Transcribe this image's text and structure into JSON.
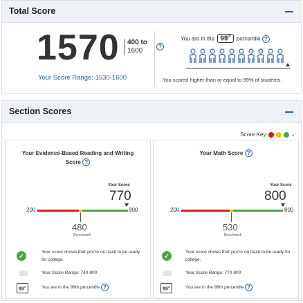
{
  "total": {
    "title": "Total Score",
    "score": "1570",
    "max_prefix": "400 to",
    "max_value": "1600",
    "range_text": "Your Score Range: 1530-1600",
    "percentile_pre": "You are in the",
    "percentile_value": "99",
    "percentile_suffix": "th",
    "percentile_post": "percentile",
    "percentile_caption": "You scored higher than or equal to 99% of students."
  },
  "sections": {
    "title": "Section Scores",
    "score_key_label": "Score Key",
    "key_colors": [
      "#d81b1b",
      "#f2c200",
      "#4aa54a"
    ],
    "bar_min": "200",
    "bar_max": "800",
    "your_score_label": "Your Score",
    "benchmark_label": "Benchmark",
    "reading_writing": {
      "title": "Your Evidence-Based Reading and Writing Score",
      "score": "770",
      "score_value": 770,
      "benchmark": "480",
      "benchmark_value": 480,
      "message": "Your score shows that you're on track to be ready for college.",
      "range": "Your Score Range: 740-800",
      "badge": "99",
      "badge_suffix": "th",
      "percentile_text": "You are in the 99th percentile"
    },
    "math": {
      "title": "Your Math Score",
      "score": "800",
      "score_value": 800,
      "benchmark": "530",
      "benchmark_value": 530,
      "message": "Your score shows that you're on track to be ready for college.",
      "range": "Your Score Range: 770-800",
      "badge": "99",
      "badge_suffix": "th",
      "percentile_text": "You are in the 99th percentile"
    }
  },
  "colors": {
    "accent": "#2a5fa8",
    "red": "#d81b1b",
    "yellow": "#f2c200",
    "green": "#4aa54a"
  }
}
